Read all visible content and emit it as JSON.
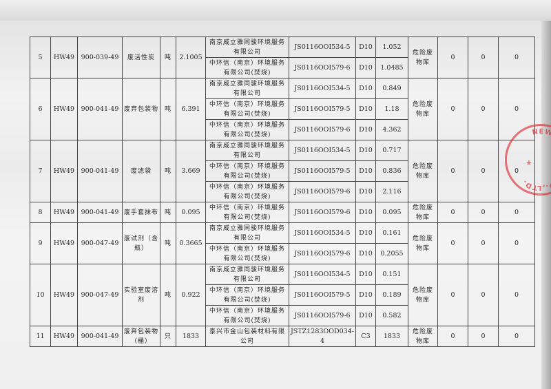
{
  "table": {
    "rows": [
      {
        "no": "5",
        "category": "HW49",
        "code": "900-039-49",
        "name": "废活性炭",
        "unit": "吨",
        "quantity": "2.1005",
        "storage": "危险废物库",
        "c1": "0",
        "c2": "0",
        "c3": "0",
        "subs": [
          {
            "company": "南京威立雅同骏环境服务有限公司",
            "permit": "JS0116OOI534-5",
            "method": "D10",
            "amount": "1.052"
          },
          {
            "company": "中环信（南京）环境服务有限公司(焚烧)",
            "permit": "JS0116OOI579-6",
            "method": "D10",
            "amount": "1.0485"
          }
        ]
      },
      {
        "no": "6",
        "category": "HW49",
        "code": "900-041-49",
        "name": "废弃包装物",
        "unit": "吨",
        "quantity": "6.391",
        "storage": "危险废物库",
        "c1": "0",
        "c2": "0",
        "c3": "0",
        "subs": [
          {
            "company": "南京威立雅同骏环境服务有限公司",
            "permit": "JS0116OOI534-5",
            "method": "D10",
            "amount": "0.849"
          },
          {
            "company": "中环信（南京）环境服务有限公司(焚烧)",
            "permit": "JS0116OOI579-5",
            "method": "D10",
            "amount": "1.18"
          },
          {
            "company": "中环信（南京）环境服务有限公司(焚烧)",
            "permit": "JS0116OOI579-6",
            "method": "D10",
            "amount": "4.362"
          }
        ]
      },
      {
        "no": "7",
        "category": "HW49",
        "code": "900-041-49",
        "name": "废滤袋",
        "unit": "吨",
        "quantity": "3.669",
        "storage": "危险废物库",
        "c1": "0",
        "c2": "0",
        "c3": "0",
        "subs": [
          {
            "company": "南京威立雅同骏环境服务有限公司",
            "permit": "JS0116OOI534-5",
            "method": "D10",
            "amount": "0.717"
          },
          {
            "company": "中环信（南京）环境服务有限公司(焚烧)",
            "permit": "JS0116OOI579-5",
            "method": "D10",
            "amount": "0.836"
          },
          {
            "company": "中环信（南京）环境服务有限公司(焚烧)",
            "permit": "JS0116OOI579-6",
            "method": "D10",
            "amount": "2.116"
          }
        ]
      },
      {
        "no": "8",
        "category": "HW49",
        "code": "900-041-49",
        "name": "废手套抹布",
        "unit": "吨",
        "quantity": "0.095",
        "storage": "危险废物库",
        "c1": "0",
        "c2": "0",
        "c3": "0",
        "subs": [
          {
            "company": "中环信（南京）环境服务有限公司(焚烧)",
            "permit": "JS0116OOI579-6",
            "method": "D10",
            "amount": "0.095"
          }
        ]
      },
      {
        "no": "9",
        "category": "HW49",
        "code": "900-047-49",
        "name": "废试剂（含瓶）",
        "unit": "吨",
        "quantity": "0.3665",
        "storage": "危险废物库",
        "c1": "0",
        "c2": "0",
        "c3": "0",
        "subs": [
          {
            "company": "南京威立雅同骏环境服务有限公司",
            "permit": "JS0116OOI534-5",
            "method": "D10",
            "amount": "0.161"
          },
          {
            "company": "中环信（南京）环境服务有限公司(焚烧)",
            "permit": "JS0116OOI579-6",
            "method": "D10",
            "amount": "0.2055"
          }
        ]
      },
      {
        "no": "10",
        "category": "HW49",
        "code": "900-047-49",
        "name": "实验室废溶剂",
        "unit": "吨",
        "quantity": "0.922",
        "storage": "危险废物库",
        "c1": "0",
        "c2": "0",
        "c3": "0",
        "subs": [
          {
            "company": "南京威立雅同骏环境服务有限公司",
            "permit": "JS0116OOI534-5",
            "method": "D10",
            "amount": "0.151"
          },
          {
            "company": "中环信（南京）环境服务有限公司(焚烧)",
            "permit": "JS0116OOI579-5",
            "method": "D10",
            "amount": "0.189"
          },
          {
            "company": "中环信（南京）环境服务有限公司(焚烧)",
            "permit": "JS0116OOI579-6",
            "method": "D10",
            "amount": "0.582"
          }
        ]
      },
      {
        "no": "11",
        "category": "HW49",
        "code": "900-041-49",
        "name": "废弃包装物（桶）",
        "unit": "只",
        "quantity": "1833",
        "storage": "危险废物库",
        "c1": "0",
        "c2": "0",
        "c3": "0",
        "subs": [
          {
            "company": "泰兴市金山包装材料有限公司",
            "permit": "JSTZ1283OOD034-4",
            "method": "C3",
            "amount": "1833"
          }
        ]
      }
    ]
  },
  "stamp": {
    "text": "NEW MATERIAL CO.,LTD.",
    "color": "#dc2832"
  }
}
